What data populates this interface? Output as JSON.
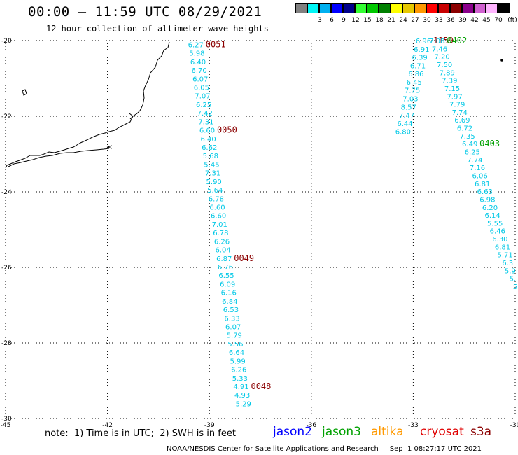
{
  "header": {
    "title": "00:00 – 11:59 UTC 08/29/2021",
    "subtitle": "12 hour collection of altimeter wave heights"
  },
  "legend": {
    "unit": "(ft)",
    "swatches": [
      {
        "color": "#808080",
        "label": ""
      },
      {
        "color": "#00f5f5",
        "label": "3"
      },
      {
        "color": "#00b0f0",
        "label": "6"
      },
      {
        "color": "#0000ff",
        "label": "9"
      },
      {
        "color": "#00008b",
        "label": "12"
      },
      {
        "color": "#33ff33",
        "label": "15"
      },
      {
        "color": "#00c800",
        "label": "18"
      },
      {
        "color": "#008000",
        "label": "21"
      },
      {
        "color": "#ffff00",
        "label": "24"
      },
      {
        "color": "#e6c800",
        "label": "27"
      },
      {
        "color": "#ff9900",
        "label": "30"
      },
      {
        "color": "#ff0000",
        "label": "33"
      },
      {
        "color": "#c80000",
        "label": "36"
      },
      {
        "color": "#8b0000",
        "label": "39"
      },
      {
        "color": "#8b008b",
        "label": "42"
      },
      {
        "color": "#d060d0",
        "label": "45"
      },
      {
        "color": "#ffb4ff",
        "label": "70"
      },
      {
        "color": "#000000",
        "label": ""
      }
    ]
  },
  "map": {
    "lon_range": [
      -45,
      -30
    ],
    "lat_range": [
      -30,
      -20
    ],
    "lon_ticks": [
      "-45",
      "-42",
      "-39",
      "-36",
      "-33",
      "-30"
    ],
    "lon_tick_values": [
      -45,
      -42,
      -39,
      -36,
      -33,
      -30
    ],
    "lat_ticks": [
      "-20",
      "-22",
      "-24",
      "-26",
      "-28",
      "-30"
    ],
    "lat_tick_values": [
      -20,
      -22,
      -24,
      -26,
      -28,
      -30
    ],
    "grid": "dotted"
  },
  "chart_data": {
    "type": "scatter",
    "title": "00:00 – 11:59 UTC 08/29/2021",
    "subtitle": "12 hour collection of altimeter wave heights",
    "xlim": [
      -45,
      -30
    ],
    "ylim": [
      -30,
      -20
    ],
    "tracks": [
      {
        "satellite": "s3a",
        "color": "#00c8e6",
        "start": [
          -39.4,
          -20.1
        ],
        "end": [
          -38.0,
          -29.6
        ],
        "values": [
          "6.27",
          "5.98",
          "6.40",
          "6.70",
          "6.07",
          "6.05",
          "7.07",
          "6.25",
          "7.42",
          "7.31",
          "6.60",
          "6.40",
          "6.62",
          "5.68",
          "5.45",
          "7.31",
          "5.90",
          "5.64",
          "6.78",
          "6.60",
          "6.60",
          "7.01",
          "6.78",
          "6.26",
          "6.04",
          "6.87",
          "6.76",
          "6.55",
          "6.09",
          "6.16",
          "6.84",
          "6.53",
          "6.33",
          "6.07",
          "5.79",
          "5.56",
          "6.64",
          "5.99",
          "6.26",
          "5.33",
          "4.91",
          "4.93",
          "5.29"
        ],
        "time_labels": [
          {
            "text": "0051",
            "index": 0
          },
          {
            "text": "0050",
            "index": 10
          },
          {
            "text": "0049",
            "index": 25
          },
          {
            "text": "0048",
            "index": 40
          }
        ]
      },
      {
        "satellite": "s3a",
        "color": "#00c8e6",
        "start": [
          -32.7,
          -20.0
        ],
        "end": [
          -33.3,
          -22.4
        ],
        "values": [
          "6.96",
          "6.91",
          "6.39",
          "6.71",
          "6.86",
          "6.45",
          "7.75",
          "7.03",
          "8.57",
          "7.47",
          "6.44",
          "6.80"
        ],
        "time_labels": [
          {
            "text": "1159",
            "index": 0
          }
        ]
      },
      {
        "satellite": "jason3",
        "color": "#00c8e6",
        "start": [
          -32.3,
          -20.0
        ],
        "end": [
          -30.0,
          -26.5
        ],
        "values": [
          "7.08",
          "7.46",
          "7.20",
          "7.50",
          "7.89",
          "7.39",
          "7.15",
          "7.97",
          "7.79",
          "7.74",
          "6.69",
          "6.72",
          "7.35",
          "6.49",
          "6.25",
          "7.74",
          "7.16",
          "6.06",
          "6.81",
          "6.63",
          "6.98",
          "6.20",
          "6.14",
          "5.55",
          "6.46",
          "6.30",
          "6.81",
          "5.71",
          "6.3",
          "5.9",
          "5.",
          "5"
        ],
        "time_labels": [
          {
            "text": "0402",
            "index": 0
          },
          {
            "text": "0403",
            "index": 13
          }
        ]
      }
    ]
  },
  "footer": {
    "note": "note:  1) Time is in UTC;  2) SWH is in feet",
    "satellites": [
      {
        "name": "jason2",
        "color": "#0000ff"
      },
      {
        "name": "jason3",
        "color": "#00a000"
      },
      {
        "name": "altika",
        "color": "#ff9900"
      },
      {
        "name": "cryosat",
        "color": "#e00000"
      },
      {
        "name": "s3a",
        "color": "#8b0000"
      }
    ],
    "credit": "NOAA/NESDIS Center for Satellite Applications and Research     Sep  1 08:27:17 UTC 2021"
  }
}
